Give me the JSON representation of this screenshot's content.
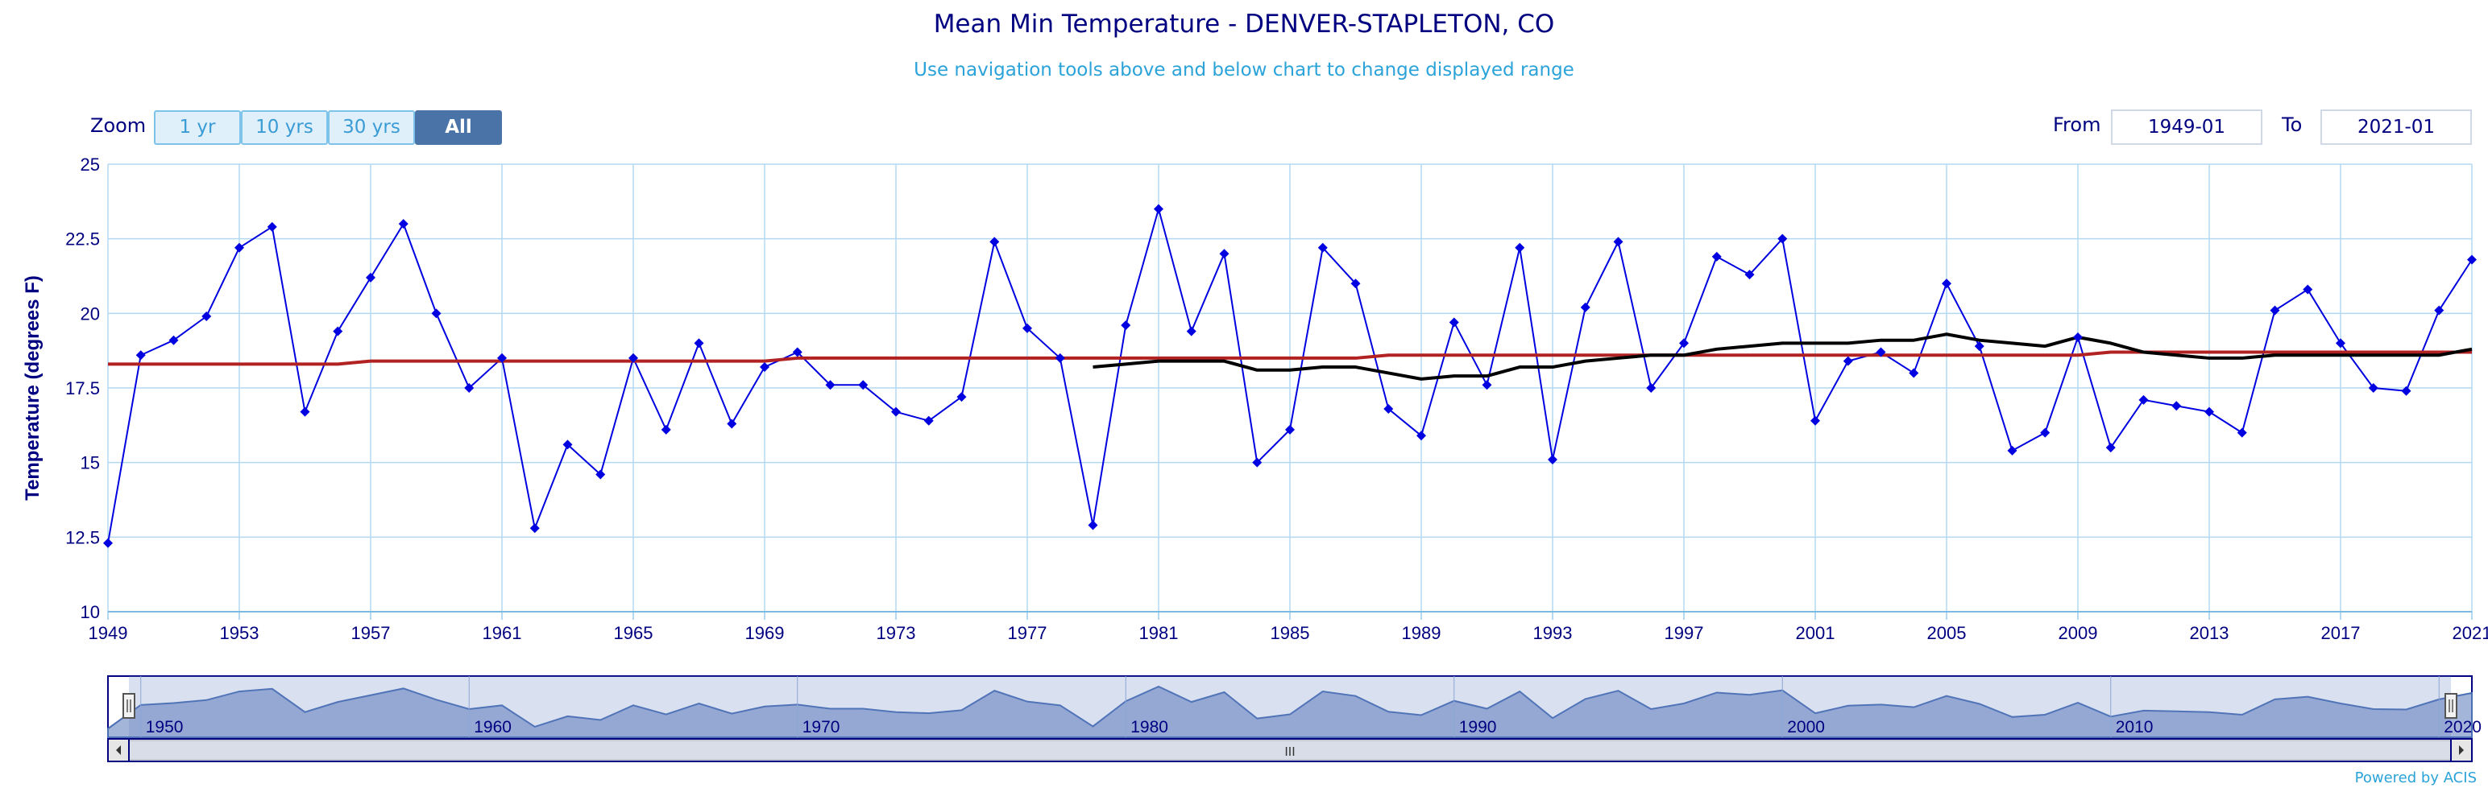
{
  "header": {
    "title": "Mean Min Temperature - DENVER-STAPLETON, CO",
    "subtitle": "Use navigation tools above and below chart to change displayed range"
  },
  "zoom": {
    "label": "Zoom",
    "buttons": [
      "1 yr",
      "10 yrs",
      "30 yrs",
      "All"
    ],
    "active": "All"
  },
  "range": {
    "from_label": "From",
    "from_value": "1949-01",
    "to_label": "To",
    "to_value": "2021-01"
  },
  "footer": {
    "credit": "Powered by ACIS"
  },
  "colors": {
    "series": "#0000e0",
    "trend": "#b22222",
    "smooth": "#000000",
    "axis_text": "#000080",
    "grid": "#b3d9f2",
    "navigator_fill": "#a3b5d9"
  },
  "chart_data": {
    "type": "line",
    "title": "Mean Min Temperature - DENVER-STAPLETON, CO",
    "ylabel": "Temperature (degrees F)",
    "xlabel": "",
    "ylim": [
      10,
      25
    ],
    "xlim": [
      1949,
      2021
    ],
    "yticks": [
      10,
      12.5,
      15,
      17.5,
      20,
      22.5,
      25
    ],
    "ytick_labels": [
      "10",
      "12.5",
      "15",
      "17.5",
      "20",
      "22.5",
      "25"
    ],
    "xticks": [
      1949,
      1953,
      1957,
      1961,
      1965,
      1969,
      1973,
      1977,
      1981,
      1985,
      1989,
      1993,
      1997,
      2001,
      2005,
      2009,
      2013,
      2017,
      2021
    ],
    "grid": true,
    "x": [
      1949,
      1950,
      1951,
      1952,
      1953,
      1954,
      1955,
      1956,
      1957,
      1958,
      1959,
      1960,
      1961,
      1962,
      1963,
      1964,
      1965,
      1966,
      1967,
      1968,
      1969,
      1970,
      1971,
      1972,
      1973,
      1974,
      1975,
      1976,
      1977,
      1978,
      1979,
      1980,
      1981,
      1982,
      1983,
      1984,
      1985,
      1986,
      1987,
      1988,
      1989,
      1990,
      1991,
      1992,
      1993,
      1994,
      1995,
      1996,
      1997,
      1998,
      1999,
      2000,
      2001,
      2002,
      2003,
      2004,
      2005,
      2006,
      2007,
      2008,
      2009,
      2010,
      2011,
      2012,
      2013,
      2014,
      2015,
      2016,
      2017,
      2018,
      2019,
      2020,
      2021
    ],
    "series": [
      {
        "values": [
          12.3,
          18.6,
          19.1,
          19.9,
          22.2,
          22.9,
          16.7,
          19.4,
          21.2,
          23.0,
          20.0,
          17.5,
          18.5,
          12.8,
          15.6,
          14.6,
          18.5,
          16.1,
          19.0,
          16.3,
          18.2,
          18.7,
          17.6,
          17.6,
          16.7,
          16.4,
          17.2,
          22.4,
          19.5,
          18.5,
          12.9,
          19.6,
          23.5,
          19.4,
          22.0,
          15.0,
          16.1,
          22.2,
          21.0,
          16.8,
          15.9,
          19.7,
          17.6,
          22.2,
          15.1,
          20.2,
          22.4,
          17.5,
          19.0,
          21.9,
          21.3,
          22.5,
          16.4,
          18.4,
          18.7,
          18.0,
          21.0,
          18.9,
          15.4,
          16.0,
          19.2,
          15.5,
          17.1,
          16.9,
          16.7,
          16.0,
          20.1,
          20.8,
          19.0,
          17.5,
          17.4,
          20.1,
          21.8
        ]
      },
      {
        "values": [
          18.3,
          18.3,
          18.3,
          18.3,
          18.3,
          18.3,
          18.3,
          18.3,
          18.4,
          18.4,
          18.4,
          18.4,
          18.4,
          18.4,
          18.4,
          18.4,
          18.4,
          18.4,
          18.4,
          18.4,
          18.4,
          18.5,
          18.5,
          18.5,
          18.5,
          18.5,
          18.5,
          18.5,
          18.5,
          18.5,
          18.5,
          18.5,
          18.5,
          18.5,
          18.5,
          18.5,
          18.5,
          18.5,
          18.5,
          18.6,
          18.6,
          18.6,
          18.6,
          18.6,
          18.6,
          18.6,
          18.6,
          18.6,
          18.6,
          18.6,
          18.6,
          18.6,
          18.6,
          18.6,
          18.6,
          18.6,
          18.6,
          18.6,
          18.6,
          18.6,
          18.6,
          18.7,
          18.7,
          18.7,
          18.7,
          18.7,
          18.7,
          18.7,
          18.7,
          18.7,
          18.7,
          18.7,
          18.7
        ]
      },
      {
        "x": [
          1979,
          1980,
          1981,
          1982,
          1983,
          1984,
          1985,
          1986,
          1987,
          1988,
          1989,
          1990,
          1991,
          1992,
          1993,
          1994,
          1995,
          1996,
          1997,
          1998,
          1999,
          2000,
          2001,
          2002,
          2003,
          2004,
          2005,
          2006,
          2007,
          2008,
          2009,
          2010,
          2011,
          2012,
          2013,
          2014,
          2015,
          2016,
          2017,
          2018,
          2019,
          2020,
          2021
        ],
        "values": [
          18.2,
          18.3,
          18.4,
          18.4,
          18.4,
          18.1,
          18.1,
          18.2,
          18.2,
          18.0,
          17.8,
          17.9,
          17.9,
          18.2,
          18.2,
          18.4,
          18.5,
          18.6,
          18.6,
          18.8,
          18.9,
          19.0,
          19.0,
          19.0,
          19.1,
          19.1,
          19.3,
          19.1,
          19.0,
          18.9,
          19.2,
          19.0,
          18.7,
          18.6,
          18.5,
          18.5,
          18.6,
          18.6,
          18.6,
          18.6,
          18.6,
          18.6,
          18.8
        ]
      }
    ],
    "navigator": {
      "labels": [
        "1950",
        "1960",
        "1970",
        "1980",
        "1990",
        "2000",
        "2010",
        "2020"
      ],
      "scroll_grip": "III"
    }
  }
}
